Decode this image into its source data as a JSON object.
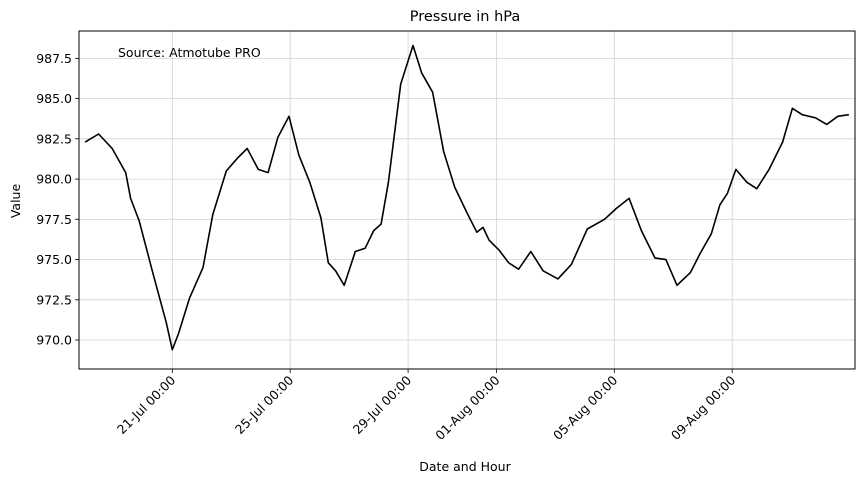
{
  "chart_data": {
    "type": "line",
    "title": "Pressure in hPa",
    "xlabel": "Date and Hour",
    "ylabel": "Value",
    "annotation": "Source: Atmotube PRO",
    "grid": true,
    "line_color": "#000000",
    "grid_color": "#d3d3d3",
    "x_range": [
      "2024-07-17 20:00",
      "2024-08-13 04:00"
    ],
    "ylim": [
      968.2,
      989.2
    ],
    "yticks": [
      970.0,
      972.5,
      975.0,
      977.5,
      980.0,
      982.5,
      985.0,
      987.5
    ],
    "ytick_labels": [
      "970.0",
      "972.5",
      "975.0",
      "977.5",
      "980.0",
      "982.5",
      "985.0",
      "987.5"
    ],
    "xticks": [
      "2024-07-21 00:00",
      "2024-07-25 00:00",
      "2024-07-29 00:00",
      "2024-08-01 00:00",
      "2024-08-05 00:00",
      "2024-08-09 00:00"
    ],
    "xtick_labels": [
      "21-Jul 00:00",
      "25-Jul 00:00",
      "29-Jul 00:00",
      "01-Aug 00:00",
      "05-Aug 00:00",
      "09-Aug 00:00"
    ],
    "series": [
      {
        "x": [
          "2024-07-18 01:00",
          "2024-07-18 12:00",
          "2024-07-18 23:00",
          "2024-07-19 10:00",
          "2024-07-19 14:00",
          "2024-07-19 21:00",
          "2024-07-20 08:00",
          "2024-07-20 19:00",
          "2024-07-21 00:00",
          "2024-07-21 05:00",
          "2024-07-21 14:00",
          "2024-07-22 01:00",
          "2024-07-22 09:00",
          "2024-07-22 20:00",
          "2024-07-23 05:00",
          "2024-07-23 13:00",
          "2024-07-23 22:00",
          "2024-07-24 06:00",
          "2024-07-24 14:00",
          "2024-07-24 23:00",
          "2024-07-25 07:00",
          "2024-07-25 16:00",
          "2024-07-26 01:00",
          "2024-07-26 07:00",
          "2024-07-26 13:00",
          "2024-07-26 20:00",
          "2024-07-27 05:00",
          "2024-07-27 13:00",
          "2024-07-27 20:00",
          "2024-07-28 02:00",
          "2024-07-28 08:00",
          "2024-07-28 18:00",
          "2024-07-29 04:00",
          "2024-07-29 11:00",
          "2024-07-29 20:00",
          "2024-07-30 05:00",
          "2024-07-30 14:00",
          "2024-07-31 00:00",
          "2024-07-31 08:00",
          "2024-07-31 13:00",
          "2024-07-31 18:00",
          "2024-08-01 02:00",
          "2024-08-01 10:00",
          "2024-08-01 18:00",
          "2024-08-02 04:00",
          "2024-08-02 14:00",
          "2024-08-03 02:00",
          "2024-08-03 13:00",
          "2024-08-04 02:00",
          "2024-08-04 16:00",
          "2024-08-05 02:00",
          "2024-08-05 12:00",
          "2024-08-05 22:00",
          "2024-08-06 09:00",
          "2024-08-06 18:00",
          "2024-08-07 03:00",
          "2024-08-07 14:00",
          "2024-08-07 22:00",
          "2024-08-08 07:00",
          "2024-08-08 14:00",
          "2024-08-08 20:00",
          "2024-08-09 03:00",
          "2024-08-09 12:00",
          "2024-08-09 20:00",
          "2024-08-10 06:00",
          "2024-08-10 17:00",
          "2024-08-11 01:00",
          "2024-08-11 09:00",
          "2024-08-11 20:00",
          "2024-08-12 05:00",
          "2024-08-12 14:00",
          "2024-08-12 23:00"
        ],
        "y": [
          982.3,
          982.8,
          981.9,
          980.4,
          978.8,
          977.4,
          974.2,
          971.1,
          969.4,
          970.4,
          972.6,
          974.5,
          977.8,
          980.5,
          981.3,
          981.9,
          980.6,
          980.4,
          982.6,
          983.9,
          981.5,
          979.8,
          977.6,
          974.8,
          974.3,
          973.4,
          975.5,
          975.7,
          976.8,
          977.2,
          979.8,
          985.9,
          988.3,
          986.6,
          985.4,
          981.7,
          979.5,
          977.9,
          976.7,
          977.0,
          976.2,
          975.6,
          974.8,
          974.4,
          975.5,
          974.3,
          973.8,
          974.7,
          976.9,
          977.5,
          978.2,
          978.8,
          976.8,
          975.1,
          975.0,
          973.4,
          974.2,
          975.4,
          976.6,
          978.4,
          979.1,
          980.6,
          979.8,
          979.4,
          980.6,
          982.3,
          984.4,
          984.0,
          983.8,
          983.4,
          983.9,
          984.0
        ]
      }
    ]
  }
}
